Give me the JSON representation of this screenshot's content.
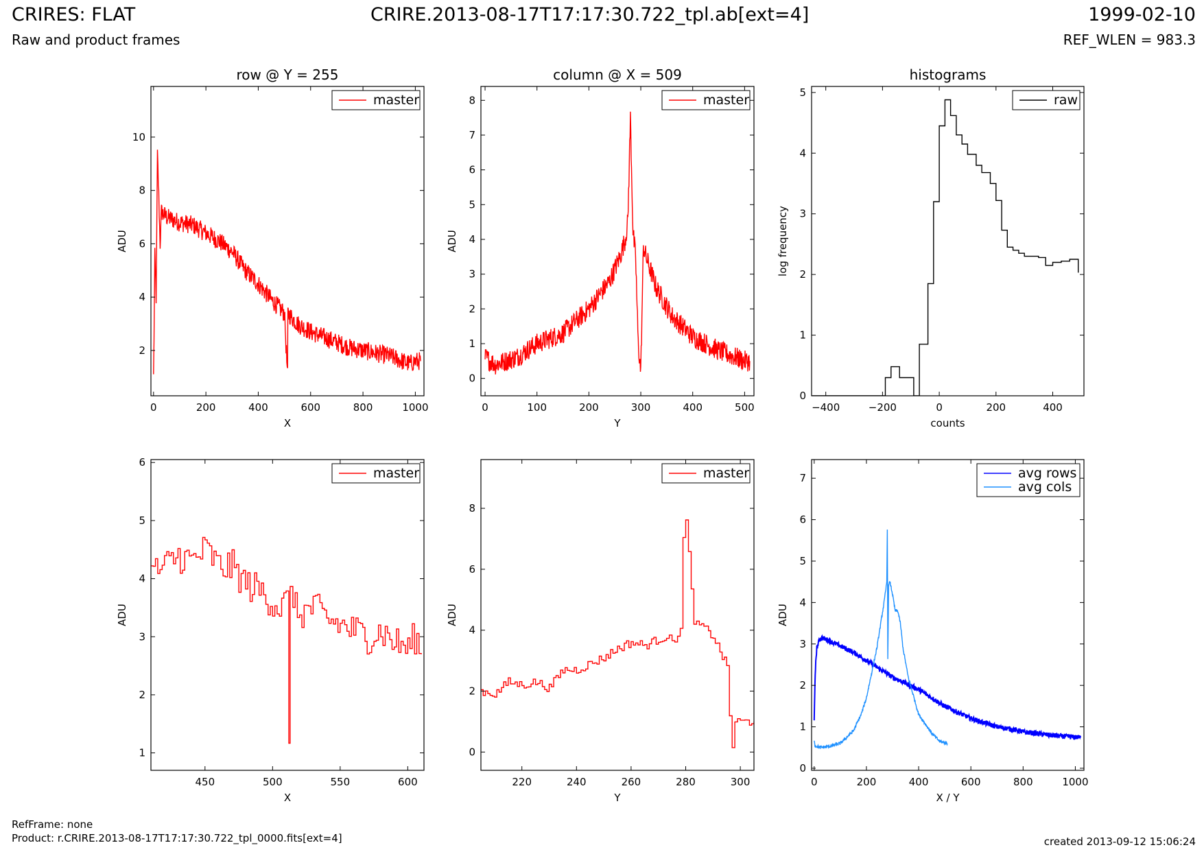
{
  "header": {
    "title": "CRIRES: FLAT",
    "subtitle": "Raw and product frames",
    "filename": "CRIRE.2013-08-17T17:17:30.722_tpl.ab[ext=4]",
    "date": "1999-02-10",
    "ref_wlen": "REF_WLEN = 983.3"
  },
  "footer": {
    "refframe": "RefFrame: none",
    "product": "Product: r.CRIRE.2013-08-17T17:17:30.722_tpl_0000.fits[ext=4]",
    "created": "created 2013-09-12 15:06:24"
  },
  "colors": {
    "master": "#ff0000",
    "raw": "#000000",
    "avg_rows": "#0000ff",
    "avg_cols": "#1e90ff"
  },
  "chart_data": [
    {
      "id": "row",
      "type": "line",
      "title": "row @ Y = 255",
      "xlabel": "X",
      "ylabel": "ADU",
      "xlim": [
        -10,
        1033
      ],
      "ylim": [
        0.3,
        11.9
      ],
      "xticks": [
        0,
        200,
        400,
        600,
        800,
        1000
      ],
      "yticks": [
        2,
        4,
        6,
        8,
        10
      ],
      "legend": "top-right",
      "series": [
        {
          "name": "master",
          "color": "#ff0000",
          "x": [
            0,
            5,
            10,
            15,
            20,
            25,
            30,
            50,
            100,
            150,
            200,
            250,
            300,
            350,
            400,
            450,
            500,
            512,
            513,
            550,
            600,
            650,
            700,
            750,
            800,
            850,
            900,
            950,
            980,
            1000,
            1020
          ],
          "y": [
            1.0,
            5.5,
            4.0,
            9.3,
            7.8,
            6.0,
            7.2,
            7.0,
            6.8,
            6.7,
            6.4,
            6.1,
            5.7,
            5.0,
            4.5,
            3.9,
            3.4,
            1.0,
            3.4,
            3.0,
            2.7,
            2.5,
            2.3,
            2.1,
            2.0,
            1.9,
            1.8,
            1.6,
            1.5,
            1.6,
            1.6
          ],
          "noise": 0.35
        }
      ]
    },
    {
      "id": "col",
      "type": "line",
      "title": "column @ X = 509",
      "xlabel": "Y",
      "ylabel": "ADU",
      "xlim": [
        -8,
        518
      ],
      "ylim": [
        -0.5,
        8.4
      ],
      "xticks": [
        0,
        100,
        200,
        300,
        400,
        500
      ],
      "yticks": [
        0,
        1,
        2,
        3,
        4,
        5,
        6,
        7,
        8
      ],
      "legend": "top-right",
      "series": [
        {
          "name": "master",
          "color": "#ff0000",
          "x": [
            0,
            20,
            40,
            60,
            80,
            100,
            150,
            200,
            240,
            260,
            270,
            275,
            280,
            285,
            290,
            295,
            300,
            305,
            310,
            330,
            360,
            400,
            450,
            500,
            510
          ],
          "y": [
            0.6,
            0.4,
            0.5,
            0.6,
            0.8,
            1.0,
            1.3,
            2.0,
            2.8,
            3.5,
            4.0,
            4.5,
            7.5,
            4.2,
            3.5,
            1.0,
            0.2,
            3.8,
            3.5,
            2.6,
            1.8,
            1.2,
            0.8,
            0.5,
            0.5
          ],
          "noise": 0.3
        }
      ]
    },
    {
      "id": "hist",
      "type": "line",
      "title": "histograms",
      "xlabel": "counts",
      "ylabel": "log frequency",
      "xlim": [
        -450,
        510
      ],
      "ylim": [
        0,
        5.1
      ],
      "xticks": [
        -400,
        -200,
        0,
        200,
        400
      ],
      "yticks": [
        0,
        1,
        2,
        3,
        4,
        5
      ],
      "legend": "top-right",
      "step": true,
      "series": [
        {
          "name": "raw",
          "color": "#000000",
          "x": [
            -450,
            -210,
            -190,
            -170,
            -140,
            -90,
            -70,
            -40,
            -20,
            0,
            20,
            40,
            60,
            80,
            100,
            130,
            150,
            180,
            200,
            220,
            240,
            260,
            280,
            300,
            350,
            375,
            400,
            430,
            460,
            490
          ],
          "y": [
            0,
            0,
            0.3,
            0.48,
            0.3,
            0,
            0.85,
            1.85,
            3.2,
            4.45,
            4.88,
            4.62,
            4.3,
            4.15,
            3.98,
            3.8,
            3.68,
            3.5,
            3.22,
            2.73,
            2.45,
            2.4,
            2.35,
            2.3,
            2.28,
            2.15,
            2.2,
            2.22,
            2.25,
            2.03
          ]
        }
      ]
    },
    {
      "id": "row_zoom",
      "type": "line",
      "xlabel": "X",
      "ylabel": "ADU",
      "xlim": [
        410,
        612
      ],
      "ylim": [
        0.7,
        6.05
      ],
      "xticks": [
        450,
        500,
        550,
        600
      ],
      "yticks": [
        1,
        2,
        3,
        4,
        5,
        6
      ],
      "legend": "top-right",
      "step": true,
      "series": [
        {
          "name": "master",
          "color": "#ff0000",
          "x": [
            410,
            420,
            430,
            440,
            450,
            460,
            470,
            480,
            490,
            500,
            505,
            510,
            512,
            513,
            515,
            520,
            530,
            540,
            550,
            560,
            570,
            580,
            590,
            600,
            605,
            610
          ],
          "y": [
            4.1,
            4.2,
            4.4,
            4.3,
            4.5,
            4.2,
            4.2,
            3.9,
            3.8,
            3.6,
            3.5,
            3.6,
            1.0,
            4.1,
            3.5,
            3.4,
            3.5,
            3.3,
            3.2,
            3.1,
            3.0,
            3.1,
            2.9,
            2.8,
            3.0,
            2.7
          ],
          "noise": 0.3
        }
      ]
    },
    {
      "id": "col_zoom",
      "type": "line",
      "xlabel": "Y",
      "ylabel": "ADU",
      "xlim": [
        205,
        305
      ],
      "ylim": [
        -0.6,
        9.6
      ],
      "xticks": [
        220,
        240,
        260,
        280,
        300
      ],
      "yticks": [
        0,
        2,
        4,
        6,
        8
      ],
      "legend": "top-right",
      "step": true,
      "series": [
        {
          "name": "master",
          "color": "#ff0000",
          "x": [
            205,
            210,
            215,
            220,
            225,
            230,
            235,
            240,
            245,
            250,
            255,
            260,
            265,
            270,
            273,
            275,
            277,
            278,
            279,
            280,
            281,
            282,
            283,
            285,
            290,
            295,
            296,
            297,
            298,
            300,
            305
          ],
          "y": [
            2.0,
            1.9,
            2.3,
            2.2,
            2.3,
            2.1,
            2.7,
            2.7,
            2.9,
            3.1,
            3.4,
            3.6,
            3.5,
            3.7,
            3.8,
            3.6,
            3.9,
            4.0,
            7.0,
            7.5,
            6.5,
            5.5,
            4.1,
            4.2,
            3.8,
            2.8,
            1.2,
            0.2,
            1.0,
            1.0,
            1.0
          ],
          "noise": 0.15
        }
      ]
    },
    {
      "id": "avg",
      "type": "line",
      "xlabel": "X / Y",
      "ylabel": "ADU",
      "xlim": [
        -10,
        1033
      ],
      "ylim": [
        -0.05,
        7.45
      ],
      "xticks": [
        0,
        200,
        400,
        600,
        800,
        1000
      ],
      "yticks": [
        0,
        1,
        2,
        3,
        4,
        5,
        6,
        7
      ],
      "legend": "top-right",
      "series": [
        {
          "name": "avg rows",
          "color": "#0000ff",
          "x": [
            0,
            3,
            6,
            10,
            20,
            30,
            50,
            100,
            150,
            200,
            250,
            300,
            350,
            400,
            450,
            500,
            550,
            600,
            650,
            700,
            750,
            800,
            850,
            900,
            950,
            1000,
            1020
          ],
          "y": [
            1.2,
            2.0,
            2.6,
            2.9,
            3.1,
            3.15,
            3.1,
            2.95,
            2.8,
            2.6,
            2.4,
            2.2,
            2.05,
            1.9,
            1.7,
            1.5,
            1.35,
            1.2,
            1.1,
            1.0,
            0.95,
            0.88,
            0.84,
            0.8,
            0.77,
            0.75,
            0.74
          ],
          "noise": 0.06
        },
        {
          "name": "avg cols",
          "color": "#1e90ff",
          "x": [
            0,
            3,
            20,
            60,
            100,
            150,
            180,
            200,
            220,
            240,
            255,
            265,
            272,
            278,
            280,
            282,
            285,
            290,
            300,
            310,
            320,
            330,
            340,
            360,
            400,
            450,
            480,
            510
          ],
          "y": [
            0.7,
            0.55,
            0.5,
            0.53,
            0.6,
            0.9,
            1.3,
            1.7,
            2.3,
            2.9,
            3.5,
            3.9,
            4.2,
            4.5,
            5.8,
            2.6,
            4.4,
            4.5,
            4.2,
            3.8,
            3.8,
            3.5,
            2.9,
            2.2,
            1.3,
            0.85,
            0.65,
            0.6
          ],
          "noise": 0.04
        }
      ]
    }
  ]
}
